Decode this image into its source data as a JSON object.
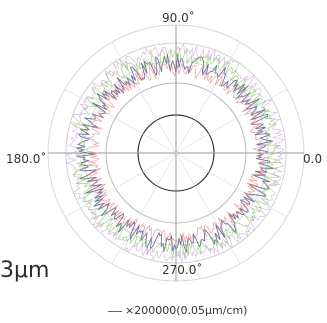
{
  "chart_data": {
    "type": "polar-line",
    "angle_labels": [
      "0.0",
      "90.0˚",
      "180.0˚",
      "270.0˚"
    ],
    "value_label": "3μm",
    "scale_legend": "×200000(0.05μm/cm)",
    "grid": true,
    "series": [
      {
        "color": "#5a5a8a"
      },
      {
        "color": "#7fbf5f"
      },
      {
        "color": "#e07a7a"
      },
      {
        "color": "#c8a0d0"
      }
    ]
  }
}
